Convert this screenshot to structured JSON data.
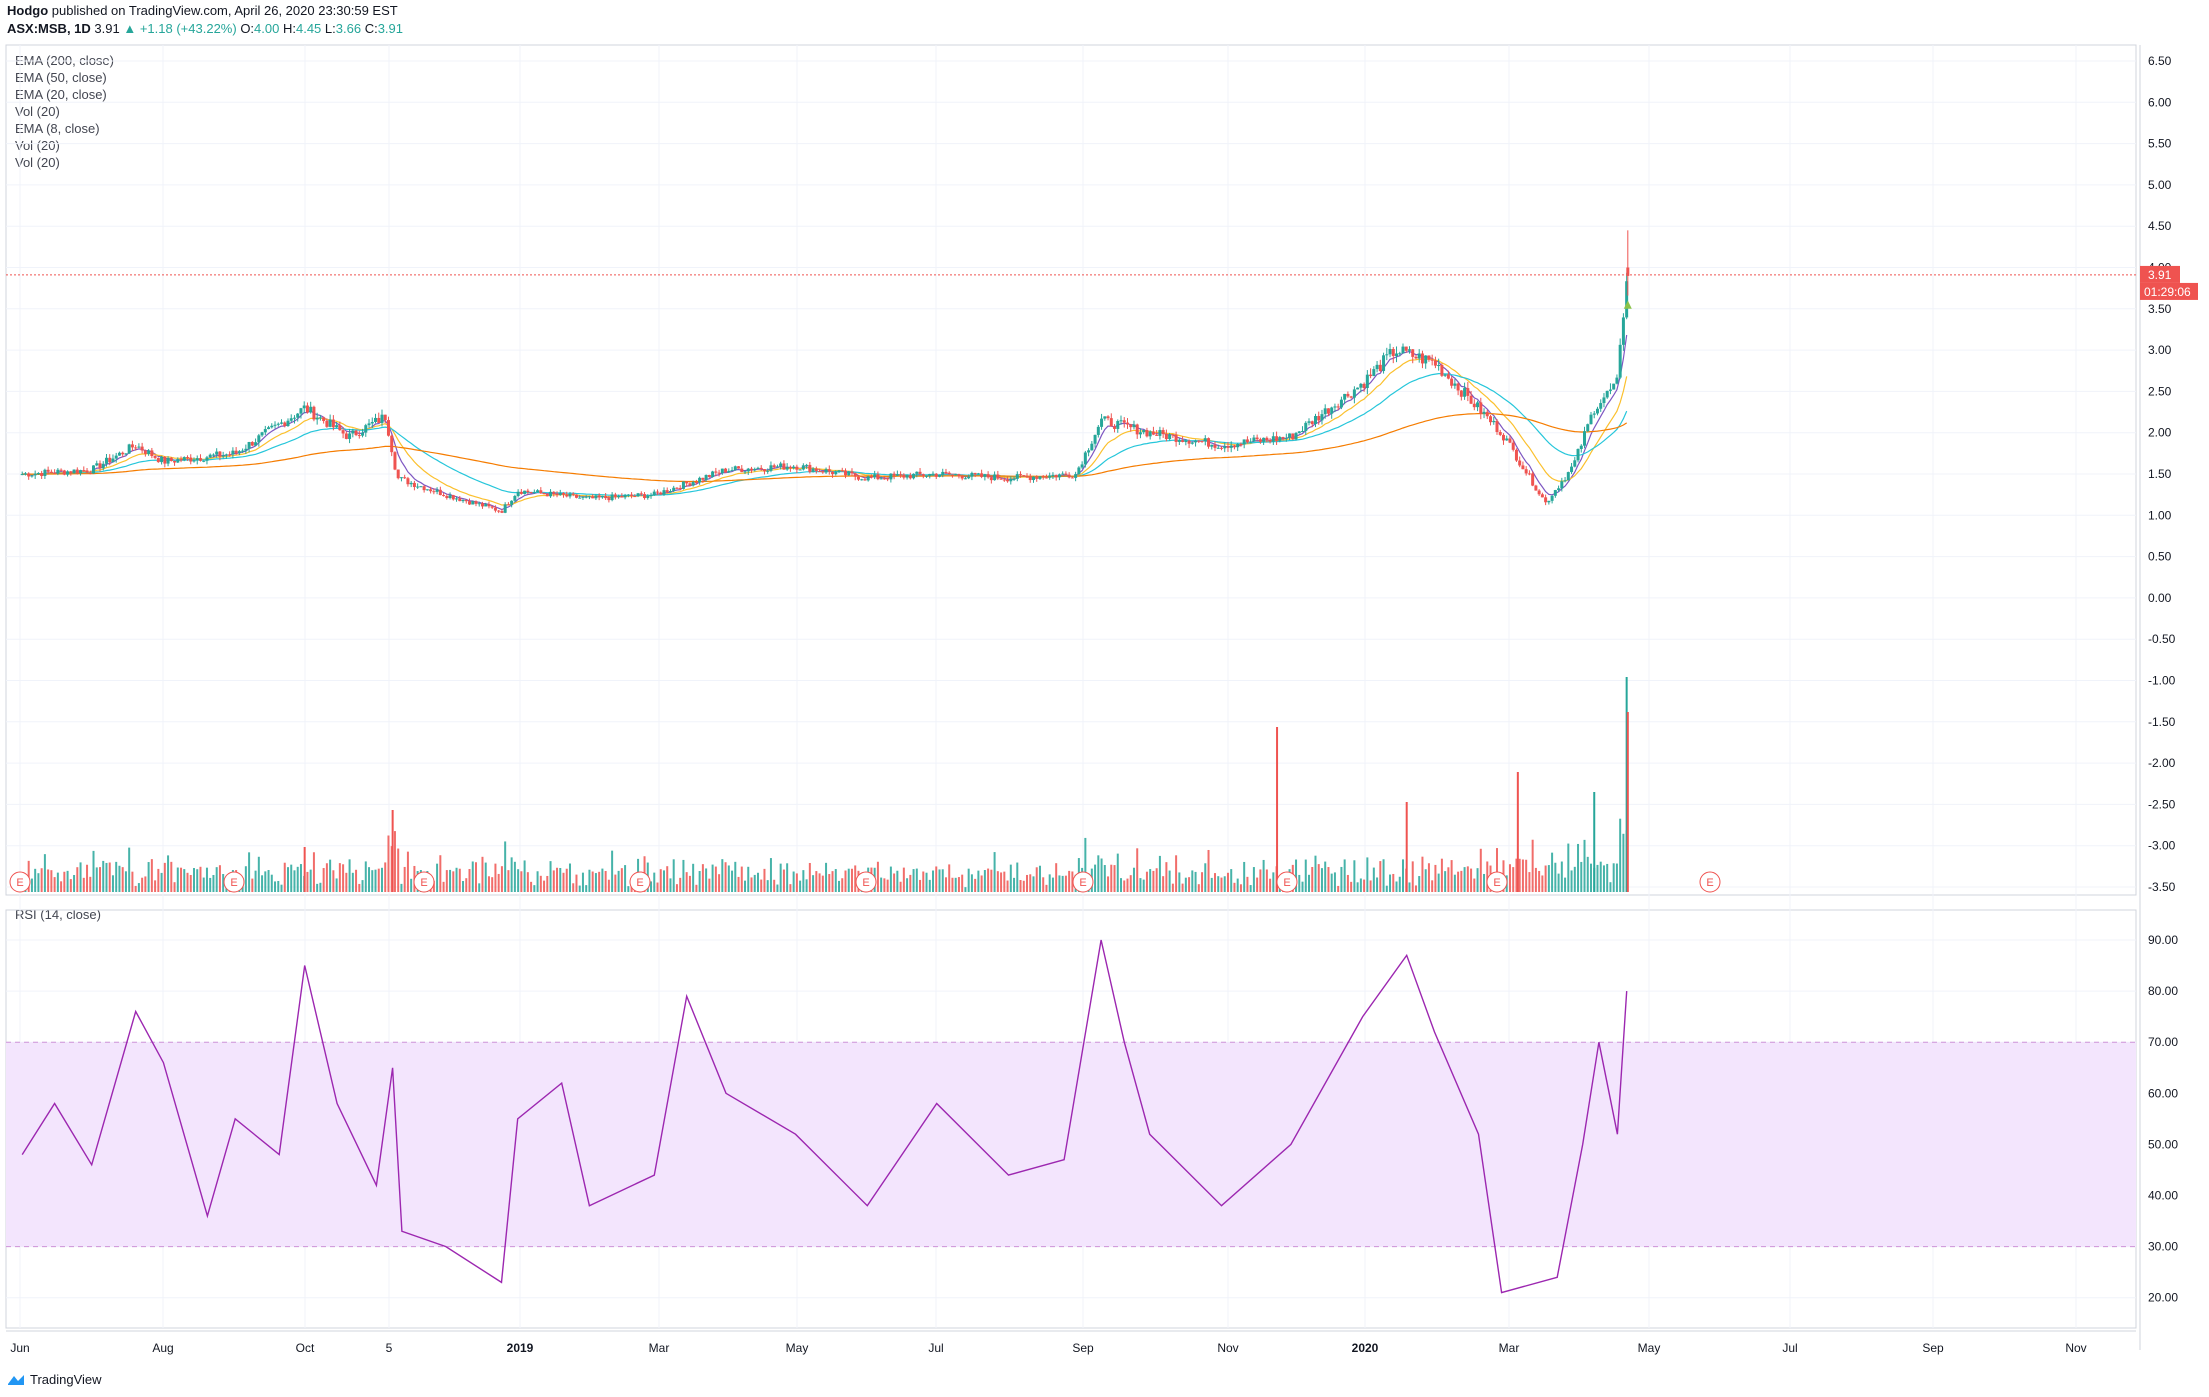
{
  "header": {
    "author": "Hodgo",
    "published": "published on TradingView.com, April 26, 2020 23:30:59 EST",
    "symbol": "ASX:MSB, 1D",
    "last": "3.91",
    "change": "▲ +1.18 (+43.22%)",
    "o_label": "O:",
    "o": "4.00",
    "h_label": "H:",
    "h": "4.45",
    "l_label": "L:",
    "l": "3.66",
    "c_label": "C:",
    "c": "3.91"
  },
  "legend": [
    "EMA (200, close)",
    "EMA (50, close)",
    "EMA (20, close)",
    "Vol (20)",
    "EMA (8, close)",
    "Vol (20)",
    "Vol (20)"
  ],
  "rsi_label": "RSI (14, close)",
  "price_badge": "3.91",
  "countdown_badge": "01:29:06",
  "footer": {
    "brand": "TradingView"
  },
  "colors": {
    "up": "#26a69a",
    "down": "#ef5350",
    "ema200": "#f57c00",
    "ema50": "#26c6da",
    "ema20": "#fbc02d",
    "ema8": "#7e57c2",
    "rsi": "#9c27b0",
    "rsi_band": "#f3e5fd",
    "price_line": "#ef5350"
  },
  "chart_data": [
    {
      "type": "candlestick",
      "title": "ASX:MSB, 1D",
      "y_axis_ticks": [
        "6.50",
        "6.00",
        "5.50",
        "5.00",
        "4.50",
        "4.00",
        "3.50",
        "3.00",
        "2.50",
        "2.00",
        "1.50",
        "1.00",
        "0.50",
        "0.00",
        "-0.50",
        "-1.00",
        "-1.50",
        "-2.00",
        "-2.50",
        "-3.00",
        "-3.50"
      ],
      "x_axis_ticks": [
        "Jun",
        "Aug",
        "Oct",
        "5",
        "2019",
        "Mar",
        "May",
        "Jul",
        "Sep",
        "Nov",
        "2020",
        "Mar",
        "May",
        "Jul",
        "Sep",
        "Nov"
      ],
      "ylim": [
        -3.5,
        6.5
      ],
      "approx_close_series": [
        {
          "date": "2018-06",
          "value": 1.5
        },
        {
          "date": "2018-07",
          "value": 1.55
        },
        {
          "date": "2018-07-20",
          "value": 1.85
        },
        {
          "date": "2018-08",
          "value": 1.65
        },
        {
          "date": "2018-09",
          "value": 1.75
        },
        {
          "date": "2018-10",
          "value": 2.3
        },
        {
          "date": "2018-10-20",
          "value": 1.95
        },
        {
          "date": "2018-11-05",
          "value": 2.2
        },
        {
          "date": "2018-11-10",
          "value": 1.45
        },
        {
          "date": "2018-12",
          "value": 1.25
        },
        {
          "date": "2018-12-25",
          "value": 1.05
        },
        {
          "date": "2019-01",
          "value": 1.3
        },
        {
          "date": "2019-02",
          "value": 1.2
        },
        {
          "date": "2019-03",
          "value": 1.25
        },
        {
          "date": "2019-04",
          "value": 1.55
        },
        {
          "date": "2019-05",
          "value": 1.6
        },
        {
          "date": "2019-06",
          "value": 1.45
        },
        {
          "date": "2019-07",
          "value": 1.5
        },
        {
          "date": "2019-08",
          "value": 1.45
        },
        {
          "date": "2019-08-30",
          "value": 1.5
        },
        {
          "date": "2019-09-10",
          "value": 2.15
        },
        {
          "date": "2019-10",
          "value": 2.0
        },
        {
          "date": "2019-11",
          "value": 1.85
        },
        {
          "date": "2019-12",
          "value": 1.95
        },
        {
          "date": "2020-01",
          "value": 2.6
        },
        {
          "date": "2020-01-15",
          "value": 3.0
        },
        {
          "date": "2020-02",
          "value": 2.85
        },
        {
          "date": "2020-03",
          "value": 2.0
        },
        {
          "date": "2020-03-20",
          "value": 1.15
        },
        {
          "date": "2020-04",
          "value": 1.6
        },
        {
          "date": "2020-04-10",
          "value": 2.3
        },
        {
          "date": "2020-04-20",
          "value": 2.6
        },
        {
          "date": "2020-04-24",
          "value": 3.91
        }
      ],
      "overlays": [
        "EMA (200, close)",
        "EMA (50, close)",
        "EMA (20, close)",
        "EMA (8, close)"
      ],
      "volume": "Vol (20)"
    },
    {
      "type": "line",
      "title": "RSI (14, close)",
      "y_axis_ticks": [
        "90.00",
        "80.00",
        "70.00",
        "60.00",
        "50.00",
        "40.00",
        "30.00",
        "20.00"
      ],
      "ylim": [
        17,
        93
      ],
      "band": [
        30,
        70
      ],
      "values": [
        {
          "date": "2018-06",
          "value": 48
        },
        {
          "date": "2018-06-15",
          "value": 58
        },
        {
          "date": "2018-07",
          "value": 46
        },
        {
          "date": "2018-07-20",
          "value": 76
        },
        {
          "date": "2018-08",
          "value": 66
        },
        {
          "date": "2018-08-20",
          "value": 36
        },
        {
          "date": "2018-09",
          "value": 55
        },
        {
          "date": "2018-09-20",
          "value": 48
        },
        {
          "date": "2018-10",
          "value": 85
        },
        {
          "date": "2018-10-15",
          "value": 58
        },
        {
          "date": "2018-11-01",
          "value": 42
        },
        {
          "date": "2018-11-08",
          "value": 65
        },
        {
          "date": "2018-11-12",
          "value": 33
        },
        {
          "date": "2018-12",
          "value": 30
        },
        {
          "date": "2018-12-25",
          "value": 23
        },
        {
          "date": "2019-01",
          "value": 55
        },
        {
          "date": "2019-01-20",
          "value": 62
        },
        {
          "date": "2019-02",
          "value": 38
        },
        {
          "date": "2019-03",
          "value": 44
        },
        {
          "date": "2019-03-15",
          "value": 79
        },
        {
          "date": "2019-04",
          "value": 60
        },
        {
          "date": "2019-05",
          "value": 52
        },
        {
          "date": "2019-06",
          "value": 38
        },
        {
          "date": "2019-07",
          "value": 58
        },
        {
          "date": "2019-08",
          "value": 44
        },
        {
          "date": "2019-08-25",
          "value": 47
        },
        {
          "date": "2019-09-10",
          "value": 90
        },
        {
          "date": "2019-09-20",
          "value": 70
        },
        {
          "date": "2019-10",
          "value": 52
        },
        {
          "date": "2019-11",
          "value": 38
        },
        {
          "date": "2019-12",
          "value": 50
        },
        {
          "date": "2020-01",
          "value": 75
        },
        {
          "date": "2020-01-20",
          "value": 87
        },
        {
          "date": "2020-02",
          "value": 72
        },
        {
          "date": "2020-02-20",
          "value": 52
        },
        {
          "date": "2020-03",
          "value": 21
        },
        {
          "date": "2020-03-25",
          "value": 24
        },
        {
          "date": "2020-04-05",
          "value": 50
        },
        {
          "date": "2020-04-12",
          "value": 70
        },
        {
          "date": "2020-04-20",
          "value": 52
        },
        {
          "date": "2020-04-24",
          "value": 80
        }
      ]
    }
  ]
}
